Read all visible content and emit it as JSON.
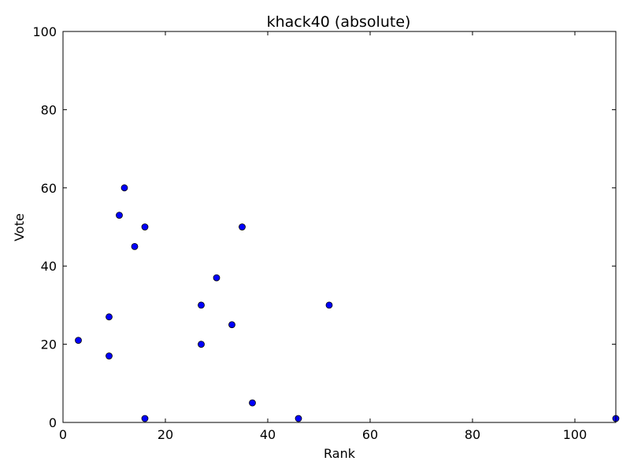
{
  "chart_data": {
    "type": "scatter",
    "title": "khack40 (absolute)",
    "xlabel": "Rank",
    "ylabel": "Vote",
    "xlim": [
      0,
      108
    ],
    "ylim": [
      0,
      100
    ],
    "xticks": [
      0,
      20,
      40,
      60,
      80,
      100
    ],
    "yticks": [
      0,
      20,
      40,
      60,
      80,
      100
    ],
    "grid": false,
    "marker_color": "#0000ff",
    "series": [
      {
        "points": [
          {
            "x": 3,
            "y": 21
          },
          {
            "x": 9,
            "y": 27
          },
          {
            "x": 9,
            "y": 17
          },
          {
            "x": 11,
            "y": 53
          },
          {
            "x": 12,
            "y": 60
          },
          {
            "x": 14,
            "y": 45
          },
          {
            "x": 16,
            "y": 50
          },
          {
            "x": 16,
            "y": 1
          },
          {
            "x": 27,
            "y": 30
          },
          {
            "x": 27,
            "y": 20
          },
          {
            "x": 30,
            "y": 37
          },
          {
            "x": 33,
            "y": 25
          },
          {
            "x": 35,
            "y": 50
          },
          {
            "x": 37,
            "y": 5
          },
          {
            "x": 46,
            "y": 1
          },
          {
            "x": 52,
            "y": 30
          },
          {
            "x": 108,
            "y": 1
          }
        ]
      }
    ]
  }
}
